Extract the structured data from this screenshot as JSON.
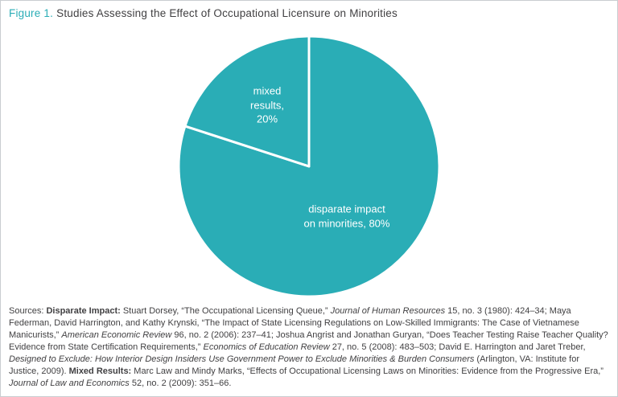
{
  "page": {
    "figure_label": "Figure 1.",
    "figure_title": "Studies Assessing the Effect of Occupational Licensure on Minorities"
  },
  "chart_data": {
    "type": "pie",
    "title": "Studies Assessing the Effect of Occupational Licensure on Minorities",
    "slices": [
      {
        "name": "disparate impact on minorities",
        "value": 80,
        "percent_label": "80%",
        "label": "disparate impact\non minorities, 80%"
      },
      {
        "name": "mixed results",
        "value": 20,
        "percent_label": "20%",
        "label": "mixed\nresults,\n20%"
      }
    ],
    "start_angle_deg": -90,
    "direction": "clockwise",
    "legend": "none",
    "colors": {
      "slice_fill": "#2aadb6",
      "divider": "#ffffff",
      "label_text": "#ffffff",
      "accent": "#2aadb6"
    }
  },
  "sources": {
    "segments": [
      {
        "style": "normal",
        "text": "Sources: "
      },
      {
        "style": "bold",
        "text": "Disparate Impact:"
      },
      {
        "style": "normal",
        "text": " Stuart Dorsey, “The Occupational Licensing Queue,” "
      },
      {
        "style": "italic",
        "text": "Journal of Human Resources"
      },
      {
        "style": "normal",
        "text": " 15, no. 3 (1980): 424–34; Maya Federman, David Harrington, and Kathy Krynski, “The Impact of State Licensing Regulations on Low-Skilled Immigrants: The Case of Vietnamese Manicurists,” "
      },
      {
        "style": "italic",
        "text": "American Economic Review"
      },
      {
        "style": "normal",
        "text": " 96, no. 2 (2006): 237–41; Joshua Angrist and Jonathan Guryan, “Does Teacher Testing Raise Teacher Quality? Evidence from State Certification Requirements,” "
      },
      {
        "style": "italic",
        "text": "Economics of Education Review"
      },
      {
        "style": "normal",
        "text": " 27, no. 5 (2008): 483–503; David E. Harrington and Jaret Treber, "
      },
      {
        "style": "italic",
        "text": "Designed to Exclude: How Interior Design Insiders Use Government Power to Exclude Minorities & Burden Consumers"
      },
      {
        "style": "normal",
        "text": " (Arlington, VA: Institute for Justice, 2009). "
      },
      {
        "style": "bold",
        "text": "Mixed Results:"
      },
      {
        "style": "normal",
        "text": " Marc Law and Mindy Marks, “Effects of Occupational Licensing Laws on Minorities: Evidence from the Progressive Era,” "
      },
      {
        "style": "italic",
        "text": "Journal of Law and Economics"
      },
      {
        "style": "normal",
        "text": " 52, no. 2 (2009): 351–66."
      }
    ]
  }
}
